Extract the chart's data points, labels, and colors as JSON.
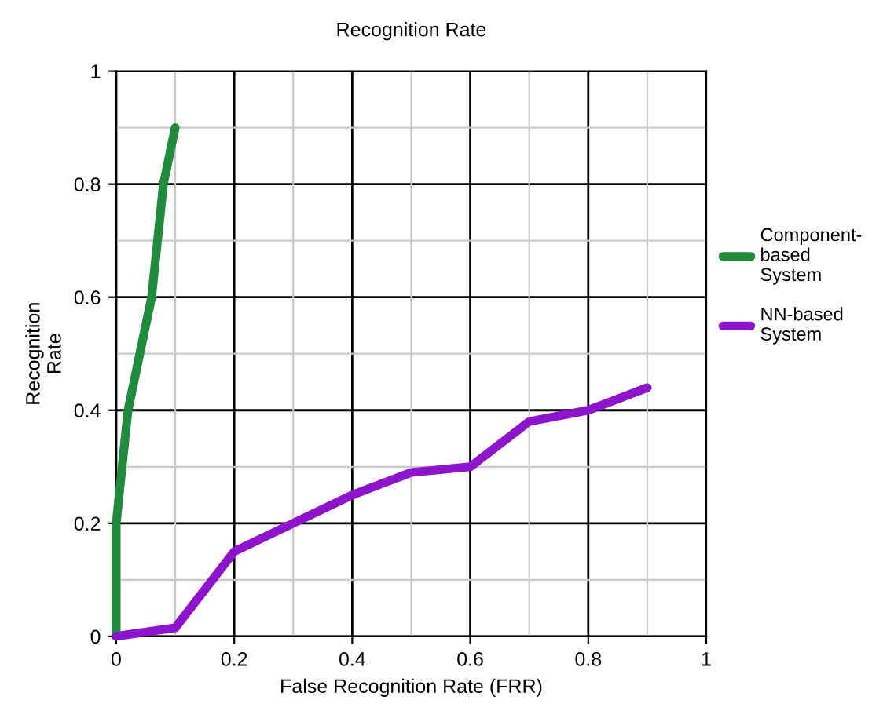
{
  "chart_data": {
    "type": "line",
    "title": "Recognition Rate",
    "xlabel": "False Recognition Rate (FRR)",
    "ylabel": "Recognition\nRate",
    "series": [
      {
        "name": "Component-\nbased\nSystem",
        "color": "#1e8c3a",
        "x": [
          0,
          0,
          0.02,
          0.06,
          0.08,
          0.1
        ],
        "values": [
          0,
          0.2,
          0.4,
          0.6,
          0.8,
          0.9
        ]
      },
      {
        "name": "NN-based\nSystem",
        "color": "#8e13cc",
        "x": [
          0,
          0.1,
          0.2,
          0.3,
          0.4,
          0.5,
          0.6,
          0.7,
          0.8,
          0.9
        ],
        "values": [
          0,
          0.015,
          0.15,
          0.2,
          0.25,
          0.29,
          0.3,
          0.38,
          0.4,
          0.44
        ]
      }
    ],
    "xlim": [
      0,
      1
    ],
    "ylim": [
      0,
      1
    ],
    "xticks": [
      0,
      0.2,
      0.4,
      0.6,
      0.8,
      1
    ],
    "yticks": [
      0,
      0.2,
      0.4,
      0.6,
      0.8,
      1
    ],
    "grid": true,
    "legend": "right",
    "marker": "none",
    "line_style": "solid"
  }
}
